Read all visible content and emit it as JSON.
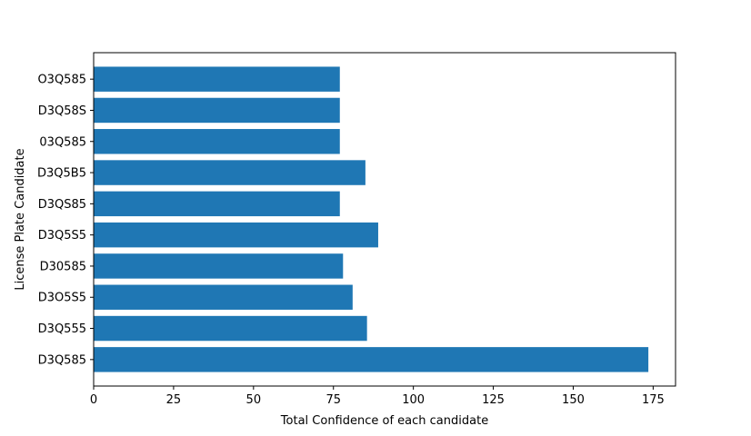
{
  "chart_data": {
    "type": "bar",
    "orientation": "horizontal",
    "title": "",
    "xlabel": "Total Confidence of each candidate",
    "ylabel": "License Plate Candidate",
    "categories": [
      "D3Q585",
      "D3Q555",
      "D3O5S5",
      "D30585",
      "D3Q5S5",
      "D3QS85",
      "D3Q5B5",
      "03Q585",
      "D3Q58S",
      "O3Q585"
    ],
    "values": [
      173.5,
      85.5,
      81,
      78,
      89,
      77,
      85,
      77,
      77,
      77
    ],
    "xticks": [
      0,
      25,
      50,
      75,
      100,
      125,
      150,
      175
    ],
    "xlim": [
      0,
      182
    ],
    "grid": false,
    "bar_color": "#1f77b4"
  }
}
